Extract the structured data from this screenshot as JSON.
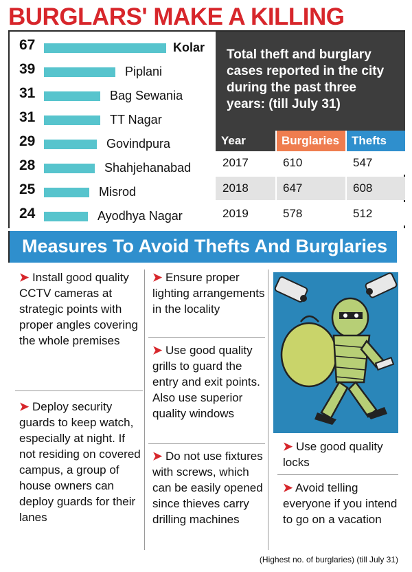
{
  "headline": "BURGLARS' MAKE A KILLING",
  "bars": {
    "max": 67,
    "items": [
      {
        "value": 67,
        "label": "Kolar"
      },
      {
        "value": 39,
        "label": "Piplani"
      },
      {
        "value": 31,
        "label": "Bag Sewania"
      },
      {
        "value": 31,
        "label": "TT Nagar"
      },
      {
        "value": 29,
        "label": "Govindpura"
      },
      {
        "value": 28,
        "label": "Shahjehanabad"
      },
      {
        "value": 25,
        "label": "Misrod"
      },
      {
        "value": 24,
        "label": "Ayodhya Nagar"
      }
    ]
  },
  "stat_box": "Total theft and burglary cases reported in the city during the past three years: (till July 31)",
  "table": {
    "headers": [
      "Year",
      "Burglaries",
      "Thefts"
    ],
    "header_colors": [
      "#3d3d3d",
      "#ef7d4f",
      "#2f8fcd"
    ],
    "rows": [
      [
        "2017",
        "610",
        "547"
      ],
      [
        "2018",
        "647",
        "608"
      ],
      [
        "2019",
        "578",
        "512"
      ]
    ]
  },
  "banner": "Measures To Avoid Thefts And Burglaries",
  "tips": {
    "t1": "Install good quality CCTV cameras at strategic points with proper angles covering the whole premises",
    "t2": "Deploy security guards to keep watch, especially at night. If not residing on covered campus, a group of house owners can deploy guards for their lanes",
    "t3": "Ensure proper lighting arrangements in the locality",
    "t4": "Use good quality grills to guard the entry and exit points. Also use superior quality windows",
    "t5": "Do not use fixtures with screws, which can be easily opened since thieves carry drilling machines",
    "t6": "Use good quality locks",
    "t7": "Avoid telling everyone if you intend to go on a vacation"
  },
  "arrow": "➤",
  "footer": "(Highest no. of burglaries) (till July 31)"
}
